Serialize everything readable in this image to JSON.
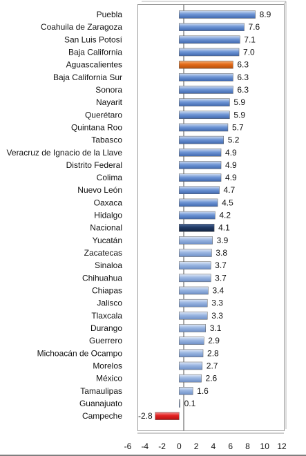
{
  "colors": {
    "default_bar_light": "#cfdcf1",
    "default_bar_mid": "#6f96d6",
    "default_bar_dark": "#3f67ad",
    "below_bar_light": "#dfe8f6",
    "below_bar_mid": "#9ab6e2",
    "below_bar_dark": "#6e8fc6",
    "highlight_orange": "#e36c1a",
    "highlight_navy": "#1f3864",
    "negative_red": "#e32222",
    "plot_border": "#9a9a9a",
    "zero_line": "#8c8c8c"
  },
  "chart_data": {
    "type": "bar",
    "orientation": "horizontal",
    "title": "",
    "xlabel": "",
    "ylabel": "",
    "xlim": [
      -6,
      12
    ],
    "xticks": [
      -6,
      -4,
      -2,
      0,
      2,
      4,
      6,
      8,
      10,
      12
    ],
    "grid": false,
    "legend": "none",
    "categories": [
      "Puebla",
      "Coahuila de Zaragoza",
      "San Luis Potosí",
      "Baja California",
      "Aguascalientes",
      "Baja California Sur",
      "Sonora",
      "Nayarit",
      "Querétaro",
      "Quintana Roo",
      "Tabasco",
      "Veracruz de Ignacio de la Llave",
      "Distrito Federal",
      "Colima",
      "Nuevo León",
      "Oaxaca",
      "Hidalgo",
      "Nacional",
      "Yucatán",
      "Zacatecas",
      "Sinaloa",
      "Chihuahua",
      "Chiapas",
      "Jalisco",
      "Tlaxcala",
      "Durango",
      "Guerrero",
      "Michoacán de Ocampo",
      "Morelos",
      "México",
      "Tamaulipas",
      "Guanajuato",
      "Campeche"
    ],
    "values": [
      8.9,
      7.6,
      7.1,
      7.0,
      6.3,
      6.3,
      6.3,
      5.9,
      5.9,
      5.7,
      5.2,
      4.9,
      4.9,
      4.9,
      4.7,
      4.5,
      4.2,
      4.1,
      3.9,
      3.8,
      3.7,
      3.7,
      3.4,
      3.3,
      3.3,
      3.1,
      2.9,
      2.8,
      2.7,
      2.6,
      1.6,
      0.1,
      -2.8
    ],
    "value_labels": [
      "8.9",
      "7.6",
      "7.1",
      "7.0",
      "6.3",
      "6.3",
      "6.3",
      "5.9",
      "5.9",
      "5.7",
      "5.2",
      "4.9",
      "4.9",
      "4.9",
      "4.7",
      "4.5",
      "4.2",
      "4.1",
      "3.9",
      "3.8",
      "3.7",
      "3.7",
      "3.4",
      "3.3",
      "3.3",
      "3.1",
      "2.9",
      "2.8",
      "2.7",
      "2.6",
      "1.6",
      "0.1",
      "-2.8"
    ],
    "bar_styles": [
      "above",
      "above",
      "above",
      "above",
      "highlight_orange",
      "above",
      "above",
      "above",
      "above",
      "above",
      "above",
      "above",
      "above",
      "above",
      "above",
      "above",
      "above",
      "highlight_navy",
      "below",
      "below",
      "below",
      "below",
      "below",
      "below",
      "below",
      "below",
      "below",
      "below",
      "below",
      "below",
      "below",
      "below",
      "negative_red"
    ]
  }
}
